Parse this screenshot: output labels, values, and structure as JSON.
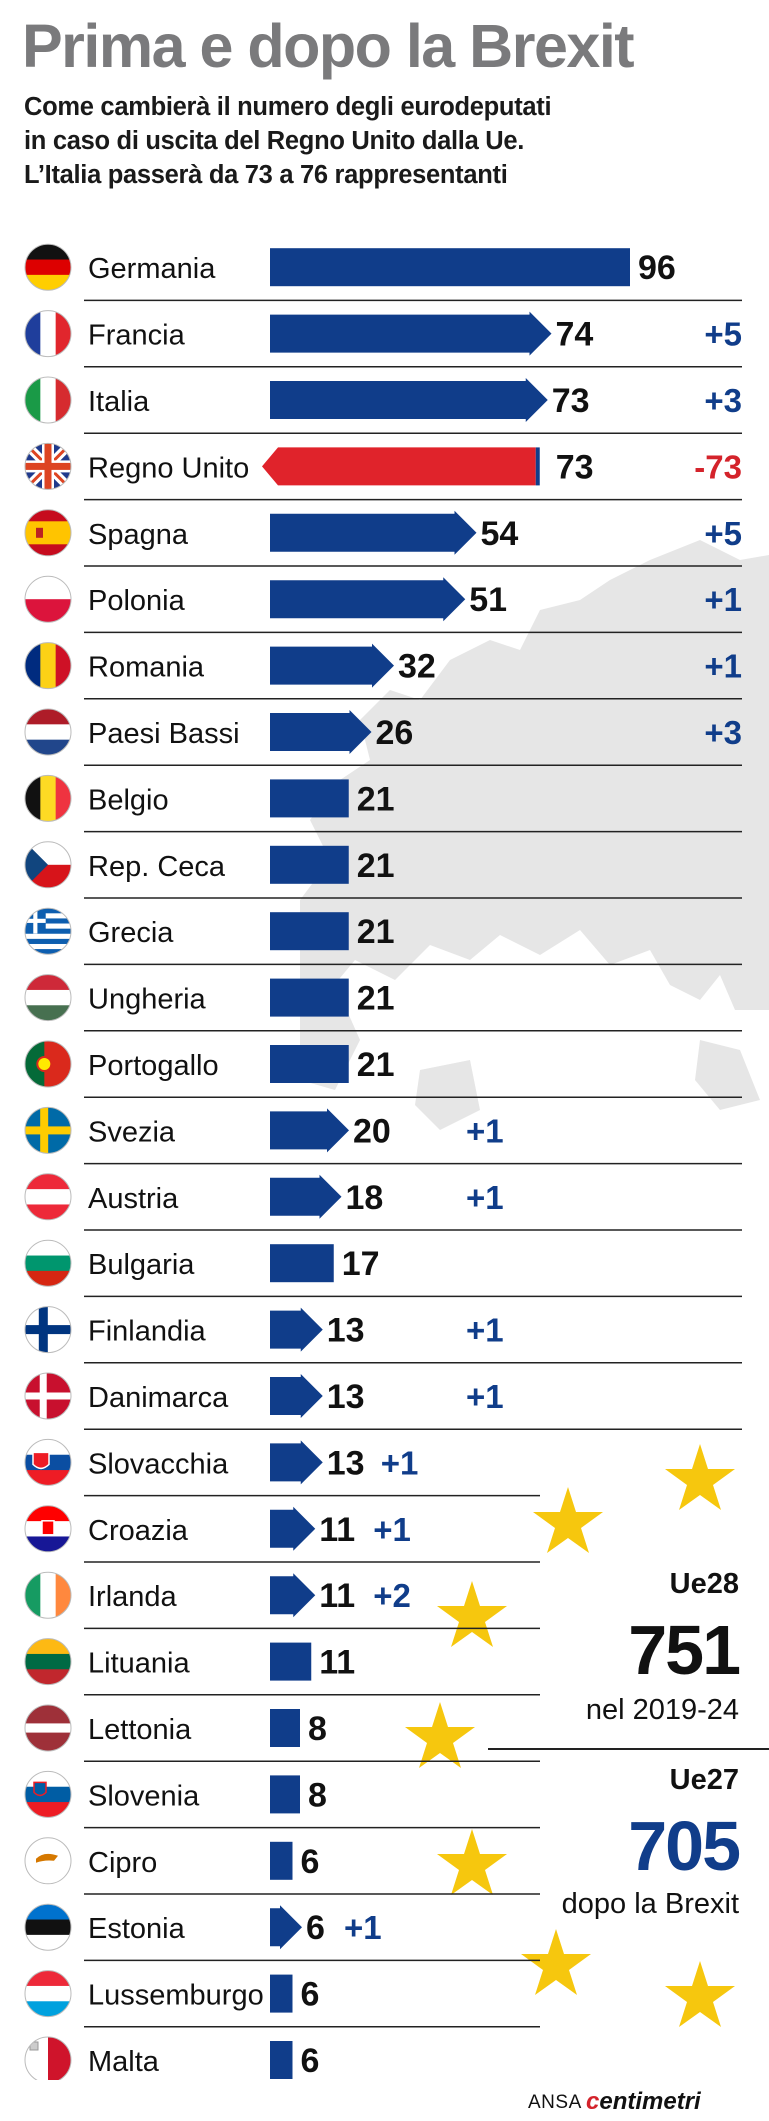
{
  "title": "Prima e dopo la Brexit",
  "subtitle_lines": [
    "Come cambierà il numero degli eurodeputati",
    "in caso di uscita del Regno Unito dalla Ue.",
    "L’Italia passerà da 73 a 76 rappresentanti"
  ],
  "panel": {
    "ue28_label": "Ue28",
    "ue28_total": "751",
    "ue28_caption": "nel 2019-24",
    "ue27_label": "Ue27",
    "ue27_total": "705",
    "ue27_caption": "dopo la Brexit"
  },
  "credit": {
    "ansa": "ANSA",
    "logo_prefix": "c",
    "logo_rest": "entimetri"
  },
  "colors": {
    "bar": "#103d8a",
    "uk_bar": "#e0232b",
    "change_positive": "#103d8a",
    "change_negative": "#d4232b",
    "title": "#7a7a7c",
    "map": "#e6e6e6",
    "star": "#f6c70e"
  },
  "chart_data": {
    "type": "bar",
    "orientation": "horizontal",
    "title": "Prima e dopo la Brexit",
    "series": [
      {
        "name": "",
        "values": [
          96,
          74,
          73,
          73,
          54,
          51,
          32,
          26,
          21,
          21,
          21,
          21,
          21,
          20,
          18,
          17,
          13,
          13,
          13,
          11,
          11,
          11,
          8,
          8,
          6,
          6,
          6,
          6
        ]
      }
    ],
    "categories": [
      "Germania",
      "Francia",
      "Italia",
      "Regno Unito",
      "Spagna",
      "Polonia",
      "Romania",
      "Paesi Bassi",
      "Belgio",
      "Rep. Ceca",
      "Grecia",
      "Ungheria",
      "Portogallo",
      "Svezia",
      "Austria",
      "Bulgaria",
      "Finlandia",
      "Danimarca",
      "Slovacchia",
      "Croazia",
      "Irlanda",
      "Lituania",
      "Lettonia",
      "Slovenia",
      "Cipro",
      "Estonia",
      "Lussemburgo",
      "Malta"
    ],
    "rows": [
      {
        "country": "Germania",
        "flag": "flag-germany",
        "seats": 96,
        "change": "",
        "arrow": false
      },
      {
        "country": "Francia",
        "flag": "flag-france",
        "seats": 74,
        "change": "+5",
        "arrow": true
      },
      {
        "country": "Italia",
        "flag": "flag-italy",
        "seats": 73,
        "change": "+3",
        "arrow": true
      },
      {
        "country": "Regno Unito",
        "flag": "flag-uk",
        "seats": 73,
        "change": "-73",
        "arrow": false,
        "removed": true
      },
      {
        "country": "Spagna",
        "flag": "flag-spain",
        "seats": 54,
        "change": "+5",
        "arrow": true
      },
      {
        "country": "Polonia",
        "flag": "flag-poland",
        "seats": 51,
        "change": "+1",
        "arrow": true
      },
      {
        "country": "Romania",
        "flag": "flag-romania",
        "seats": 32,
        "change": "+1",
        "arrow": true
      },
      {
        "country": "Paesi Bassi",
        "flag": "flag-netherlands",
        "seats": 26,
        "change": "+3",
        "arrow": true
      },
      {
        "country": "Belgio",
        "flag": "flag-belgium",
        "seats": 21,
        "change": "",
        "arrow": false
      },
      {
        "country": "Rep. Ceca",
        "flag": "flag-czech",
        "seats": 21,
        "change": "",
        "arrow": false
      },
      {
        "country": "Grecia",
        "flag": "flag-greece",
        "seats": 21,
        "change": "",
        "arrow": false
      },
      {
        "country": "Ungheria",
        "flag": "flag-hungary",
        "seats": 21,
        "change": "",
        "arrow": false
      },
      {
        "country": "Portogallo",
        "flag": "flag-portugal",
        "seats": 21,
        "change": "",
        "arrow": false
      },
      {
        "country": "Svezia",
        "flag": "flag-sweden",
        "seats": 20,
        "change": "+1",
        "arrow": true
      },
      {
        "country": "Austria",
        "flag": "flag-austria",
        "seats": 18,
        "change": "+1",
        "arrow": true
      },
      {
        "country": "Bulgaria",
        "flag": "flag-bulgaria",
        "seats": 17,
        "change": "",
        "arrow": false
      },
      {
        "country": "Finlandia",
        "flag": "flag-finland",
        "seats": 13,
        "change": "+1",
        "arrow": true
      },
      {
        "country": "Danimarca",
        "flag": "flag-denmark",
        "seats": 13,
        "change": "+1",
        "arrow": true
      },
      {
        "country": "Slovacchia",
        "flag": "flag-slovakia",
        "seats": 13,
        "change": "+1",
        "arrow": true
      },
      {
        "country": "Croazia",
        "flag": "flag-croatia",
        "seats": 11,
        "change": "+1",
        "arrow": true
      },
      {
        "country": "Irlanda",
        "flag": "flag-ireland",
        "seats": 11,
        "change": "+2",
        "arrow": true
      },
      {
        "country": "Lituania",
        "flag": "flag-lithuania",
        "seats": 11,
        "change": "",
        "arrow": false
      },
      {
        "country": "Lettonia",
        "flag": "flag-latvia",
        "seats": 8,
        "change": "",
        "arrow": false
      },
      {
        "country": "Slovenia",
        "flag": "flag-slovenia",
        "seats": 8,
        "change": "",
        "arrow": false
      },
      {
        "country": "Cipro",
        "flag": "flag-cyprus",
        "seats": 6,
        "change": "",
        "arrow": false
      },
      {
        "country": "Estonia",
        "flag": "flag-estonia",
        "seats": 6,
        "change": "+1",
        "arrow": true
      },
      {
        "country": "Lussemburgo",
        "flag": "flag-luxembourg",
        "seats": 6,
        "change": "",
        "arrow": false
      },
      {
        "country": "Malta",
        "flag": "flag-malta",
        "seats": 6,
        "change": "",
        "arrow": false
      }
    ],
    "xlim": [
      0,
      96
    ],
    "xlabel": "",
    "ylabel": "",
    "grid": false,
    "legend": "none"
  }
}
